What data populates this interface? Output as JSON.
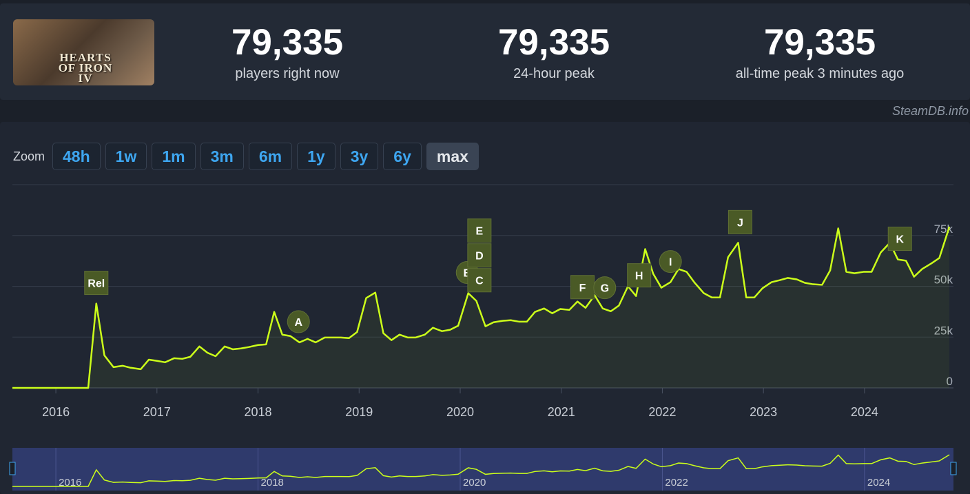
{
  "game": {
    "logo_text": "HEARTS OF IRON IV"
  },
  "stats": [
    {
      "value": "79,335",
      "label": "players right now"
    },
    {
      "value": "79,335",
      "label": "24-hour peak"
    },
    {
      "value": "79,335",
      "label": "all-time peak 3 minutes ago"
    }
  ],
  "source": "SteamDB.info",
  "zoom": {
    "label": "Zoom",
    "buttons": [
      "48h",
      "1w",
      "1m",
      "3m",
      "6m",
      "1y",
      "3y",
      "6y",
      "max"
    ]
  },
  "chart_data": {
    "type": "line",
    "x": [
      2015.57,
      2015.65,
      2016.24,
      2016.32,
      2016.4,
      2016.48,
      2016.57,
      2016.66,
      2016.74,
      2016.84,
      2016.92,
      2017.0,
      2017.08,
      2017.17,
      2017.25,
      2017.33,
      2017.42,
      2017.5,
      2017.58,
      2017.67,
      2017.75,
      2017.83,
      2017.91,
      2018.0,
      2018.08,
      2018.16,
      2018.24,
      2018.32,
      2018.41,
      2018.49,
      2018.57,
      2018.66,
      2018.74,
      2018.82,
      2018.9,
      2018.98,
      2019.07,
      2019.16,
      2019.24,
      2019.32,
      2019.4,
      2019.48,
      2019.56,
      2019.65,
      2019.73,
      2019.82,
      2019.9,
      2019.98,
      2020.08,
      2020.16,
      2020.25,
      2020.33,
      2020.42,
      2020.5,
      2020.58,
      2020.66,
      2020.74,
      2020.83,
      2020.91,
      2020.99,
      2021.08,
      2021.16,
      2021.24,
      2021.33,
      2021.41,
      2021.49,
      2021.57,
      2021.66,
      2021.74,
      2021.83,
      2021.91,
      2021.99,
      2022.08,
      2022.16,
      2022.24,
      2022.32,
      2022.41,
      2022.49,
      2022.57,
      2022.65,
      2022.75,
      2022.83,
      2022.91,
      2022.99,
      2023.08,
      2023.16,
      2023.24,
      2023.33,
      2023.41,
      2023.49,
      2023.58,
      2023.66,
      2023.74,
      2023.82,
      2023.9,
      2023.99,
      2024.07,
      2024.16,
      2024.25,
      2024.33,
      2024.41,
      2024.49,
      2024.57,
      2024.66,
      2024.74,
      2024.84
    ],
    "series": [
      {
        "color": "#ccff1a",
        "values": [
          0,
          0,
          0,
          0,
          41500,
          16000,
          10200,
          10900,
          9900,
          9200,
          13900,
          13300,
          12600,
          14600,
          14300,
          15300,
          20400,
          17300,
          15600,
          20400,
          19000,
          19400,
          20100,
          21100,
          21400,
          37400,
          26200,
          25500,
          22400,
          24100,
          22400,
          24800,
          24800,
          24800,
          24500,
          27500,
          44200,
          46900,
          26900,
          23500,
          26200,
          24800,
          24800,
          26200,
          29600,
          27900,
          28600,
          30600,
          46600,
          42800,
          30300,
          32300,
          33000,
          33300,
          32600,
          32600,
          37400,
          39100,
          36700,
          38800,
          38400,
          42500,
          39400,
          45600,
          39100,
          37700,
          40500,
          50000,
          45200,
          68300,
          56100,
          49300,
          52000,
          58500,
          57100,
          51700,
          46600,
          44500,
          44500,
          64300,
          71400,
          44500,
          44500,
          49000,
          52000,
          53000,
          54100,
          53400,
          51700,
          51000,
          50700,
          57800,
          78500,
          57100,
          56400,
          57100,
          57100,
          66600,
          71400,
          63200,
          62600,
          54700,
          58500,
          61200,
          63900,
          79300
        ]
      }
    ],
    "xlim": [
      2015.57,
      2024.88
    ],
    "xticks": [
      2016,
      2017,
      2018,
      2019,
      2020,
      2021,
      2022,
      2023,
      2024
    ],
    "ylim": [
      0,
      100000
    ],
    "yticks": [
      0,
      {
        "value": 25000,
        "label": "25k"
      },
      {
        "value": 50000,
        "label": "50k"
      },
      {
        "value": 75000,
        "label": "75k"
      }
    ],
    "grid": true,
    "annotations": [
      {
        "label": "Rel",
        "x": 2016.4,
        "shape": "flag"
      },
      {
        "label": "A",
        "x": 2018.4,
        "shape": "circle"
      },
      {
        "label": "B",
        "x": 2020.07,
        "shape": "circle"
      },
      {
        "label": "C",
        "x": 2020.19,
        "shape": "flag"
      },
      {
        "label": "D",
        "x": 2020.19,
        "shape": "flag"
      },
      {
        "label": "E",
        "x": 2020.19,
        "shape": "flag"
      },
      {
        "label": "F",
        "x": 2021.21,
        "shape": "flag"
      },
      {
        "label": "G",
        "x": 2021.43,
        "shape": "circle"
      },
      {
        "label": "H",
        "x": 2021.77,
        "shape": "flag"
      },
      {
        "label": "I",
        "x": 2022.08,
        "shape": "circle"
      },
      {
        "label": "J",
        "x": 2022.77,
        "shape": "flag"
      },
      {
        "label": "K",
        "x": 2024.35,
        "shape": "flag"
      }
    ],
    "navigator_xticks": [
      2016,
      2018,
      2020,
      2022,
      2024
    ]
  }
}
